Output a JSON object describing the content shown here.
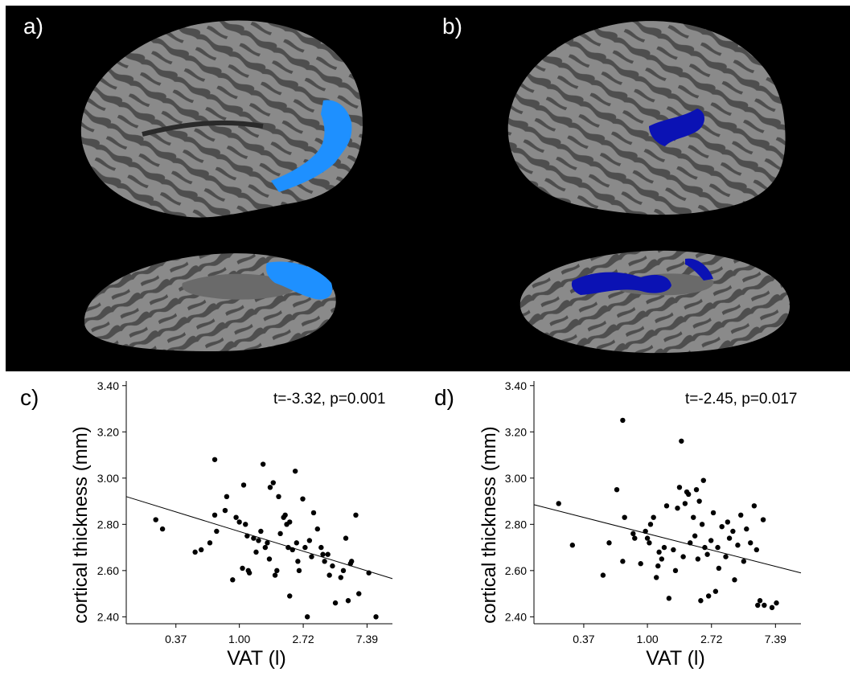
{
  "panels": {
    "a": "a)",
    "b": "b)",
    "c": "c)",
    "d": "d)"
  },
  "colors": {
    "background_top": "#000000",
    "cortex_light": "#8a8a8a",
    "cortex_dark": "#4e4e4e",
    "cluster_a": "#1e90ff",
    "cluster_b": "#0b12b4",
    "points": "#000000"
  },
  "chart_data": [
    {
      "type": "scatter",
      "panel": "c)",
      "stat_annotation": "t=-3.32, p=0.001",
      "xlabel": "VAT (l)",
      "ylabel": "cortical thickness (mm)",
      "x_scale": "log",
      "xlim": [
        0.17,
        11.0
      ],
      "ylim": [
        2.37,
        3.42
      ],
      "x_ticks": [
        0.37,
        1.0,
        2.72,
        7.39
      ],
      "x_tick_labels": [
        "0.37",
        "1.00",
        "2.72",
        "7.39"
      ],
      "y_ticks": [
        2.4,
        2.6,
        2.8,
        3.0,
        3.2,
        3.4
      ],
      "y_tick_labels": [
        "2.40",
        "2.60",
        "2.80",
        "3.00",
        "3.20",
        "3.40"
      ],
      "fit_line": {
        "x": [
          0.17,
          11.0
        ],
        "y": [
          2.92,
          2.565
        ]
      },
      "points": [
        [
          0.27,
          2.82
        ],
        [
          0.3,
          2.78
        ],
        [
          0.5,
          2.68
        ],
        [
          0.55,
          2.69
        ],
        [
          0.63,
          2.72
        ],
        [
          0.68,
          3.08
        ],
        [
          0.68,
          2.84
        ],
        [
          0.7,
          2.77
        ],
        [
          0.8,
          2.86
        ],
        [
          0.82,
          2.92
        ],
        [
          0.9,
          2.56
        ],
        [
          0.95,
          2.83
        ],
        [
          1.0,
          2.81
        ],
        [
          1.05,
          2.61
        ],
        [
          1.07,
          2.97
        ],
        [
          1.1,
          2.8
        ],
        [
          1.13,
          2.75
        ],
        [
          1.15,
          2.6
        ],
        [
          1.17,
          2.59
        ],
        [
          1.25,
          2.74
        ],
        [
          1.3,
          2.68
        ],
        [
          1.35,
          2.73
        ],
        [
          1.4,
          2.77
        ],
        [
          1.45,
          3.06
        ],
        [
          1.5,
          2.7
        ],
        [
          1.55,
          2.72
        ],
        [
          1.6,
          2.65
        ],
        [
          1.62,
          2.96
        ],
        [
          1.7,
          2.98
        ],
        [
          1.75,
          2.58
        ],
        [
          1.8,
          2.6
        ],
        [
          1.85,
          2.92
        ],
        [
          1.9,
          2.76
        ],
        [
          2.0,
          2.83
        ],
        [
          2.05,
          2.84
        ],
        [
          2.1,
          2.8
        ],
        [
          2.15,
          2.7
        ],
        [
          2.2,
          2.81
        ],
        [
          2.2,
          2.49
        ],
        [
          2.3,
          2.69
        ],
        [
          2.4,
          3.03
        ],
        [
          2.45,
          2.72
        ],
        [
          2.5,
          2.64
        ],
        [
          2.55,
          2.6
        ],
        [
          2.7,
          2.91
        ],
        [
          2.8,
          2.7
        ],
        [
          2.9,
          2.4
        ],
        [
          3.0,
          2.73
        ],
        [
          3.1,
          2.66
        ],
        [
          3.2,
          2.85
        ],
        [
          3.4,
          2.78
        ],
        [
          3.6,
          2.7
        ],
        [
          3.7,
          2.67
        ],
        [
          3.8,
          2.64
        ],
        [
          4.0,
          2.67
        ],
        [
          4.1,
          2.58
        ],
        [
          4.3,
          2.62
        ],
        [
          4.5,
          2.46
        ],
        [
          4.9,
          2.57
        ],
        [
          5.1,
          2.6
        ],
        [
          5.3,
          2.74
        ],
        [
          5.5,
          2.47
        ],
        [
          5.7,
          2.63
        ],
        [
          5.8,
          2.64
        ],
        [
          6.2,
          2.84
        ],
        [
          6.5,
          2.5
        ],
        [
          7.6,
          2.59
        ],
        [
          8.5,
          2.4
        ]
      ]
    },
    {
      "type": "scatter",
      "panel": "d)",
      "stat_annotation": "t=-2.45, p=0.017",
      "xlabel": "VAT (l)",
      "ylabel": "cortical thickness (mm)",
      "x_scale": "log",
      "xlim": [
        0.17,
        11.0
      ],
      "ylim": [
        2.37,
        3.42
      ],
      "x_ticks": [
        0.37,
        1.0,
        2.72,
        7.39
      ],
      "x_tick_labels": [
        "0.37",
        "1.00",
        "2.72",
        "7.39"
      ],
      "y_ticks": [
        2.4,
        2.6,
        2.8,
        3.0,
        3.2,
        3.4
      ],
      "y_tick_labels": [
        "2.40",
        "2.60",
        "2.80",
        "3.00",
        "3.20",
        "3.40"
      ],
      "fit_line": {
        "x": [
          0.17,
          11.0
        ],
        "y": [
          2.885,
          2.59
        ]
      },
      "points": [
        [
          0.25,
          2.89
        ],
        [
          0.31,
          2.71
        ],
        [
          0.5,
          2.58
        ],
        [
          0.55,
          2.72
        ],
        [
          0.62,
          2.95
        ],
        [
          0.68,
          2.64
        ],
        [
          0.68,
          3.25
        ],
        [
          0.7,
          2.83
        ],
        [
          0.8,
          2.76
        ],
        [
          0.82,
          2.74
        ],
        [
          0.9,
          2.63
        ],
        [
          0.97,
          2.77
        ],
        [
          1.0,
          2.74
        ],
        [
          1.03,
          2.72
        ],
        [
          1.05,
          2.8
        ],
        [
          1.1,
          2.83
        ],
        [
          1.15,
          2.57
        ],
        [
          1.18,
          2.62
        ],
        [
          1.2,
          2.68
        ],
        [
          1.25,
          2.65
        ],
        [
          1.3,
          2.7
        ],
        [
          1.35,
          2.88
        ],
        [
          1.4,
          2.48
        ],
        [
          1.5,
          2.69
        ],
        [
          1.55,
          2.6
        ],
        [
          1.6,
          2.87
        ],
        [
          1.65,
          2.96
        ],
        [
          1.7,
          3.16
        ],
        [
          1.75,
          2.66
        ],
        [
          1.8,
          2.89
        ],
        [
          1.85,
          2.94
        ],
        [
          1.9,
          2.93
        ],
        [
          1.95,
          2.72
        ],
        [
          2.05,
          2.83
        ],
        [
          2.1,
          2.75
        ],
        [
          2.15,
          2.95
        ],
        [
          2.2,
          2.65
        ],
        [
          2.25,
          2.9
        ],
        [
          2.3,
          2.47
        ],
        [
          2.35,
          2.8
        ],
        [
          2.4,
          2.99
        ],
        [
          2.45,
          2.7
        ],
        [
          2.55,
          2.67
        ],
        [
          2.6,
          2.49
        ],
        [
          2.7,
          2.73
        ],
        [
          2.8,
          2.85
        ],
        [
          2.9,
          2.51
        ],
        [
          3.0,
          2.7
        ],
        [
          3.05,
          2.61
        ],
        [
          3.2,
          2.79
        ],
        [
          3.4,
          2.66
        ],
        [
          3.5,
          2.81
        ],
        [
          3.6,
          2.74
        ],
        [
          3.8,
          2.77
        ],
        [
          3.9,
          2.56
        ],
        [
          4.1,
          2.71
        ],
        [
          4.3,
          2.84
        ],
        [
          4.5,
          2.64
        ],
        [
          4.7,
          2.78
        ],
        [
          5.0,
          2.72
        ],
        [
          5.3,
          2.88
        ],
        [
          5.5,
          2.69
        ],
        [
          5.6,
          2.45
        ],
        [
          5.8,
          2.47
        ],
        [
          6.1,
          2.82
        ],
        [
          6.2,
          2.45
        ],
        [
          7.0,
          2.44
        ],
        [
          7.5,
          2.46
        ]
      ]
    }
  ]
}
